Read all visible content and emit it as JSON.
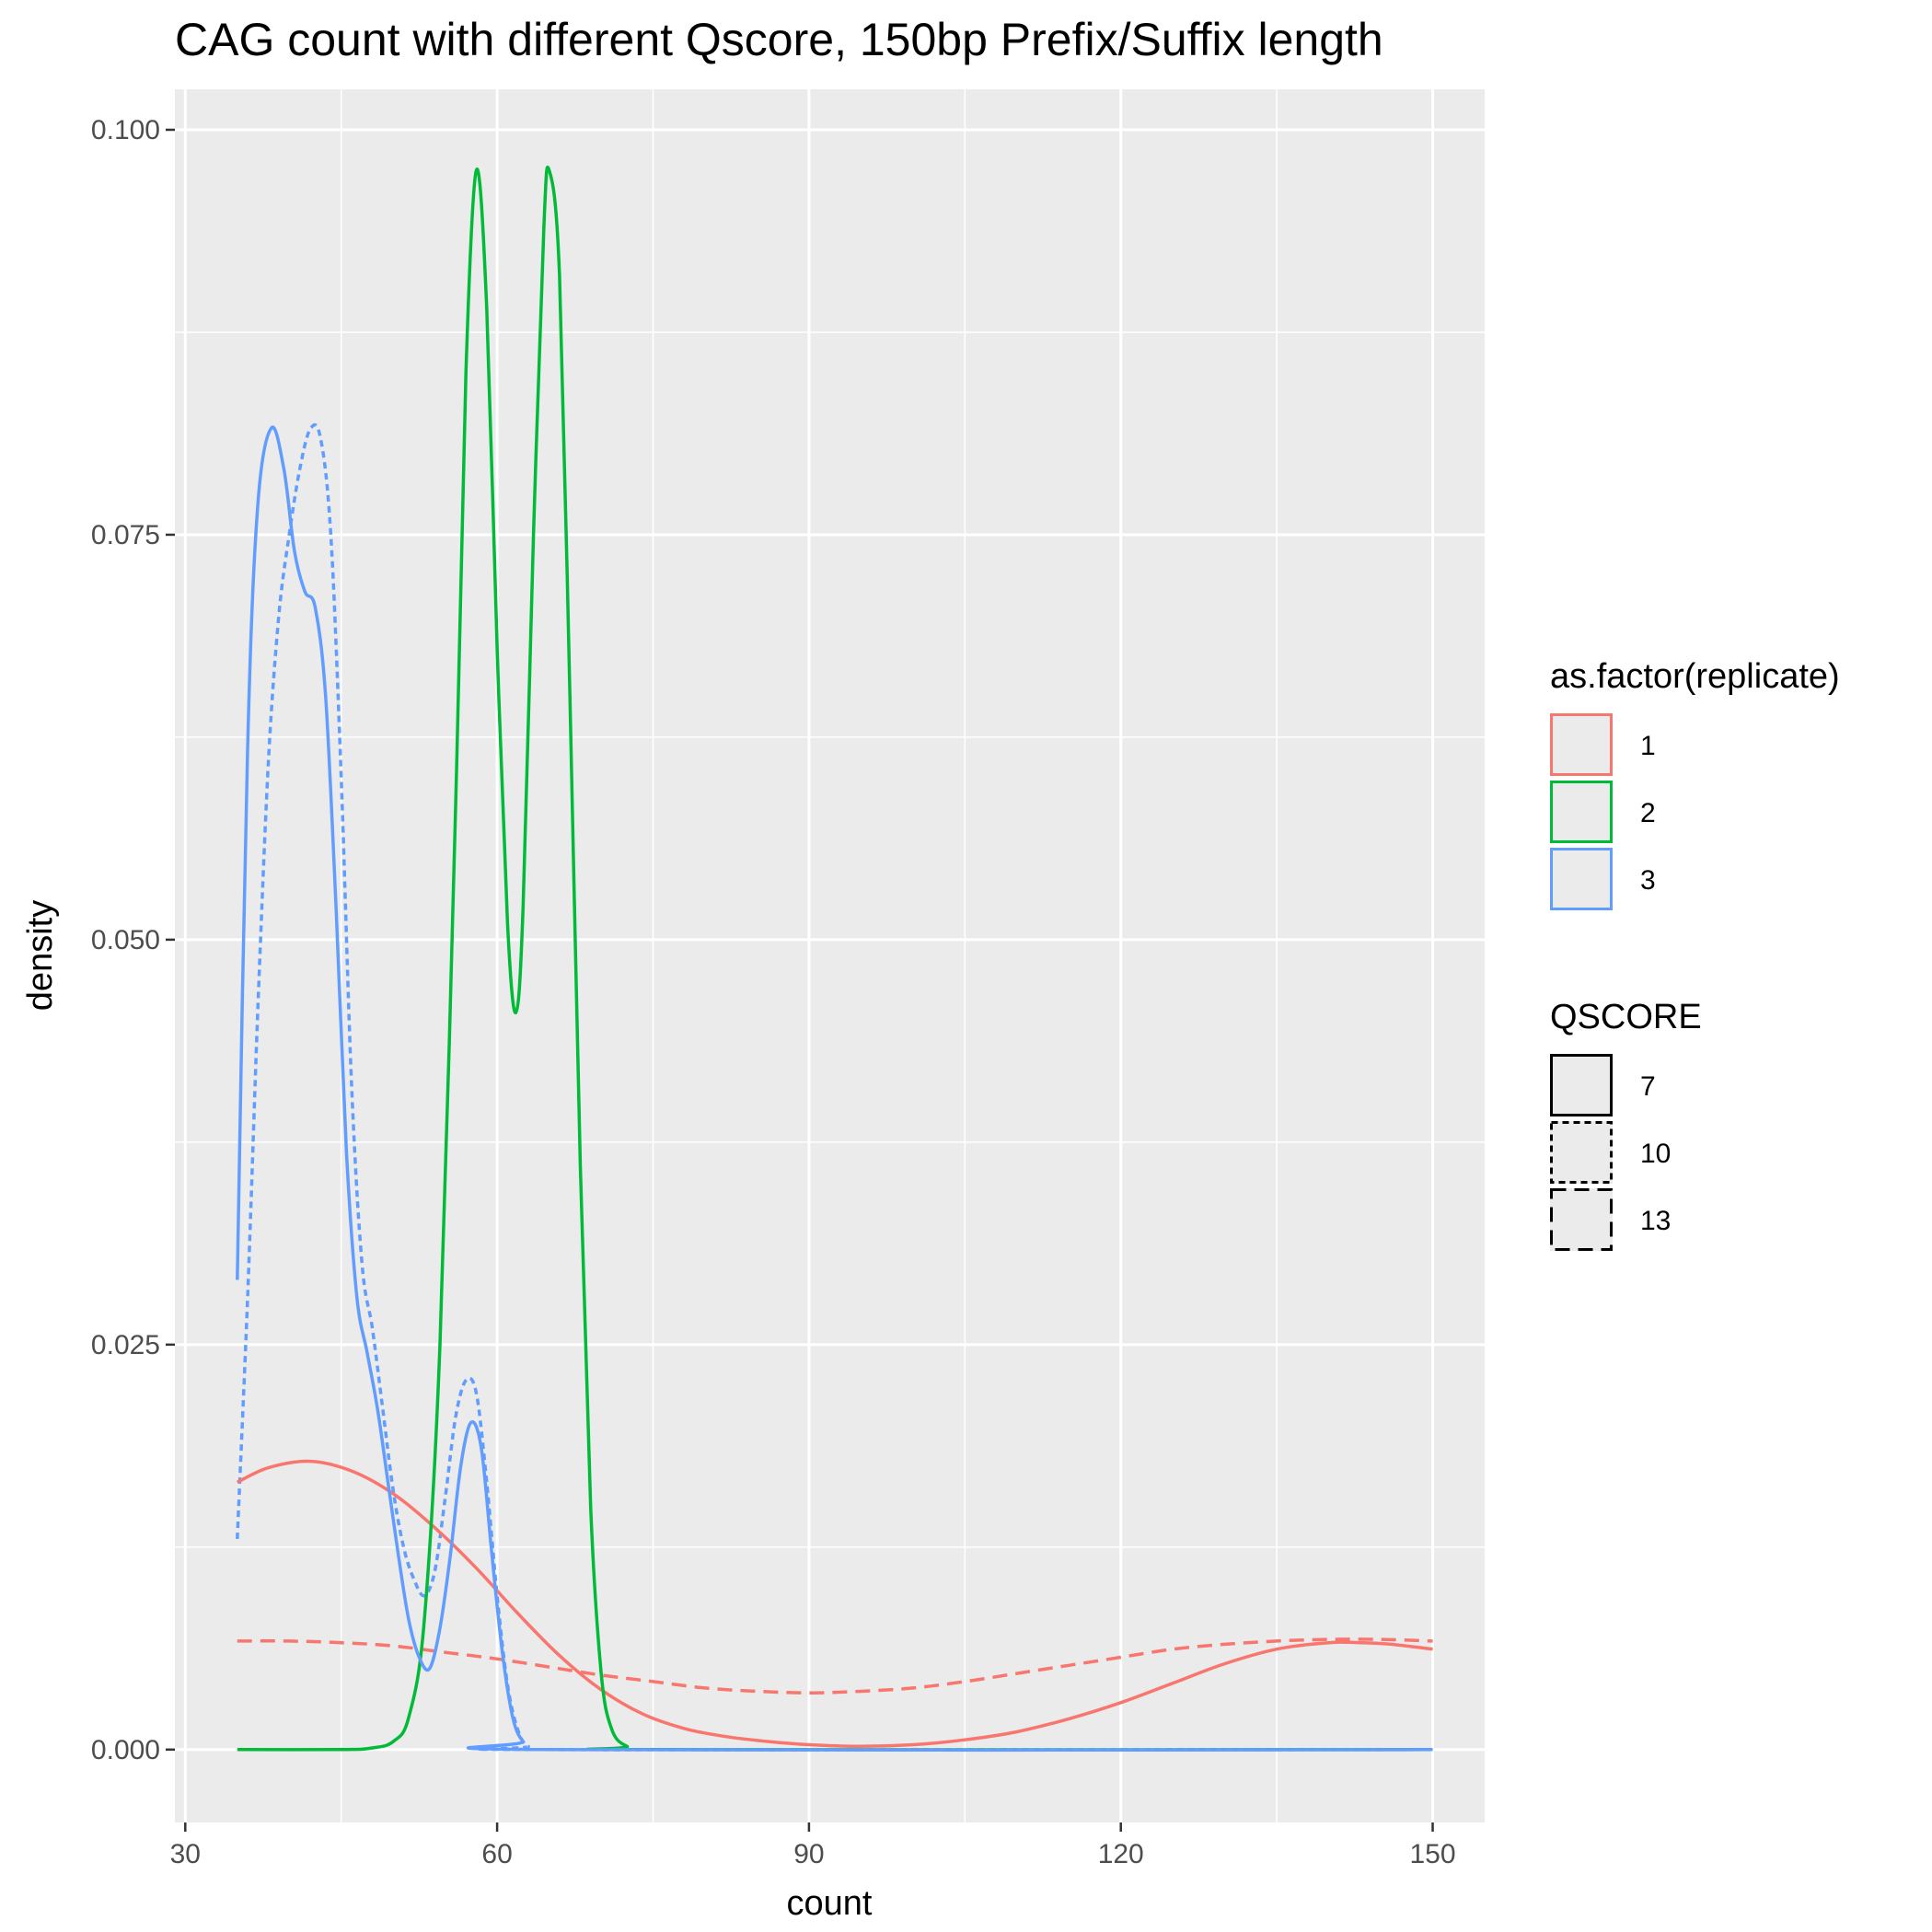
{
  "chart_data": {
    "type": "line",
    "title": "CAG count with different Qscore, 150bp Prefix/Suffix length",
    "xlabel": "count",
    "ylabel": "density",
    "xlim": [
      29,
      155
    ],
    "ylim": [
      -0.0045,
      0.1025
    ],
    "x_ticks": [
      30,
      60,
      90,
      120,
      150
    ],
    "x_tick_labels": [
      "30",
      "60",
      "90",
      "120",
      "150"
    ],
    "y_ticks": [
      0,
      0.025,
      0.05,
      0.075,
      0.1
    ],
    "y_tick_labels": [
      "0.000",
      "0.025",
      "0.050",
      "0.075",
      "0.100"
    ],
    "grid": true,
    "legend": [
      {
        "title": "as.factor(replicate)",
        "type": "color",
        "entries": [
          {
            "label": "1",
            "color": "#F8766D"
          },
          {
            "label": "2",
            "color": "#00BA38"
          },
          {
            "label": "3",
            "color": "#619CFF"
          }
        ]
      },
      {
        "title": "QSCORE",
        "type": "linetype",
        "entries": [
          {
            "label": "7",
            "linetype": "solid"
          },
          {
            "label": "10",
            "linetype": "dotted"
          },
          {
            "label": "13",
            "linetype": "dashed"
          }
        ]
      }
    ],
    "series": [
      {
        "replicate": "1",
        "qscore": "7",
        "color": "#F8766D",
        "linetype": "solid",
        "points": [
          [
            35,
            0.0165
          ],
          [
            38,
            0.0174
          ],
          [
            42,
            0.0178
          ],
          [
            46,
            0.0172
          ],
          [
            50,
            0.0158
          ],
          [
            54,
            0.0137
          ],
          [
            58,
            0.0112
          ],
          [
            62,
            0.0084
          ],
          [
            66,
            0.0058
          ],
          [
            70,
            0.0037
          ],
          [
            74,
            0.0022
          ],
          [
            78,
            0.0013
          ],
          [
            82,
            0.0008
          ],
          [
            86,
            0.0005
          ],
          [
            90,
            0.0003
          ],
          [
            95,
            0.0002
          ],
          [
            100,
            0.0003
          ],
          [
            105,
            0.0006
          ],
          [
            110,
            0.0011
          ],
          [
            115,
            0.0019
          ],
          [
            120,
            0.0029
          ],
          [
            125,
            0.0041
          ],
          [
            130,
            0.0053
          ],
          [
            135,
            0.0062
          ],
          [
            140,
            0.0066
          ],
          [
            143,
            0.0066
          ],
          [
            146,
            0.0065
          ],
          [
            150,
            0.0062
          ]
        ]
      },
      {
        "replicate": "1",
        "qscore": "13",
        "color": "#F8766D",
        "linetype": "dashed",
        "points": [
          [
            35,
            0.0067
          ],
          [
            40,
            0.0067
          ],
          [
            45,
            0.0066
          ],
          [
            50,
            0.0064
          ],
          [
            55,
            0.006
          ],
          [
            60,
            0.0056
          ],
          [
            65,
            0.0051
          ],
          [
            70,
            0.0046
          ],
          [
            75,
            0.0042
          ],
          [
            80,
            0.0038
          ],
          [
            85,
            0.0036
          ],
          [
            90,
            0.0035
          ],
          [
            95,
            0.0036
          ],
          [
            100,
            0.0038
          ],
          [
            105,
            0.0042
          ],
          [
            110,
            0.0047
          ],
          [
            115,
            0.0052
          ],
          [
            120,
            0.0057
          ],
          [
            125,
            0.0062
          ],
          [
            130,
            0.0065
          ],
          [
            135,
            0.0067
          ],
          [
            140,
            0.0068
          ],
          [
            145,
            0.0068
          ],
          [
            150,
            0.0067
          ]
        ]
      },
      {
        "replicate": "2",
        "qscore": "7",
        "color": "#00BA38",
        "linetype": "solid",
        "points": [
          [
            35,
            0
          ],
          [
            45,
            0
          ],
          [
            48,
            0.0001
          ],
          [
            50,
            0.0005
          ],
          [
            51.5,
            0.002
          ],
          [
            53,
            0.008
          ],
          [
            54.5,
            0.025
          ],
          [
            56,
            0.058
          ],
          [
            57,
            0.085
          ],
          [
            58,
            0.0975
          ],
          [
            59,
            0.089
          ],
          [
            60,
            0.068
          ],
          [
            61,
            0.051
          ],
          [
            61.8,
            0.0455
          ],
          [
            62.5,
            0.052
          ],
          [
            63.5,
            0.075
          ],
          [
            64.5,
            0.094
          ],
          [
            65,
            0.0975
          ],
          [
            66,
            0.091
          ],
          [
            67,
            0.065
          ],
          [
            68,
            0.036
          ],
          [
            69,
            0.015
          ],
          [
            70,
            0.0048
          ],
          [
            71,
            0.0013
          ],
          [
            72.5,
            0.0002
          ],
          [
            75,
            0
          ],
          [
            150,
            0
          ]
        ]
      },
      {
        "replicate": "3",
        "qscore": "7",
        "color": "#619CFF",
        "linetype": "solid",
        "points": [
          [
            35,
            0.029
          ],
          [
            36,
            0.062
          ],
          [
            37,
            0.077
          ],
          [
            38.3,
            0.0816
          ],
          [
            39.5,
            0.079
          ],
          [
            40.5,
            0.074
          ],
          [
            41.5,
            0.0715
          ],
          [
            42.5,
            0.0705
          ],
          [
            43.5,
            0.065
          ],
          [
            44.5,
            0.052
          ],
          [
            45.5,
            0.037
          ],
          [
            46.5,
            0.028
          ],
          [
            47.5,
            0.0245
          ],
          [
            48.5,
            0.021
          ],
          [
            49.5,
            0.0165
          ],
          [
            50.5,
            0.012
          ],
          [
            51.5,
            0.008
          ],
          [
            52.5,
            0.0057
          ],
          [
            53.5,
            0.005
          ],
          [
            54.5,
            0.0075
          ],
          [
            55.5,
            0.012
          ],
          [
            56.5,
            0.0175
          ],
          [
            57.5,
            0.0202
          ],
          [
            58.5,
            0.0185
          ],
          [
            59.5,
            0.012
          ],
          [
            60.5,
            0.006
          ],
          [
            61.5,
            0.002
          ],
          [
            62.5,
            0.0005
          ],
          [
            64,
            0
          ],
          [
            150,
            0
          ]
        ]
      },
      {
        "replicate": "3",
        "qscore": "10",
        "color": "#619CFF",
        "linetype": "dotted",
        "points": [
          [
            35,
            0.013
          ],
          [
            36,
            0.028
          ],
          [
            37,
            0.046
          ],
          [
            38,
            0.061
          ],
          [
            39,
            0.07
          ],
          [
            40,
            0.075
          ],
          [
            41,
            0.079
          ],
          [
            42,
            0.0815
          ],
          [
            43,
            0.081
          ],
          [
            44,
            0.075
          ],
          [
            45,
            0.06
          ],
          [
            46,
            0.041
          ],
          [
            47,
            0.03
          ],
          [
            48,
            0.026
          ],
          [
            49,
            0.021
          ],
          [
            50,
            0.016
          ],
          [
            51,
            0.0125
          ],
          [
            52,
            0.0105
          ],
          [
            53,
            0.0095
          ],
          [
            54,
            0.011
          ],
          [
            55,
            0.0155
          ],
          [
            56,
            0.0205
          ],
          [
            57,
            0.0228
          ],
          [
            58,
            0.022
          ],
          [
            59,
            0.0165
          ],
          [
            60,
            0.0095
          ],
          [
            61,
            0.004
          ],
          [
            62,
            0.0012
          ],
          [
            63,
            0.0002
          ],
          [
            65,
            0
          ],
          [
            150,
            0
          ]
        ]
      }
    ]
  }
}
